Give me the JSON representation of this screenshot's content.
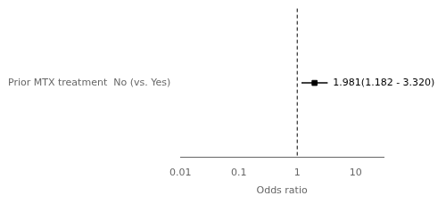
{
  "chart_data": {
    "type": "forest",
    "categories": [
      "Prior MTX treatment  No (vs. Yes)"
    ],
    "values": [
      1.981
    ],
    "ci_low": [
      1.182
    ],
    "ci_high": [
      3.32
    ],
    "annotations": [
      "1.981(1.182 - 3.320)"
    ],
    "reference_line": 1.0,
    "x_label": "Odds ratio",
    "xlim": [
      0.01,
      30
    ],
    "xticks": [
      0.01,
      0.1,
      1,
      10
    ],
    "log": "x",
    "grid": false,
    "color": "#000000",
    "marker": "square"
  }
}
